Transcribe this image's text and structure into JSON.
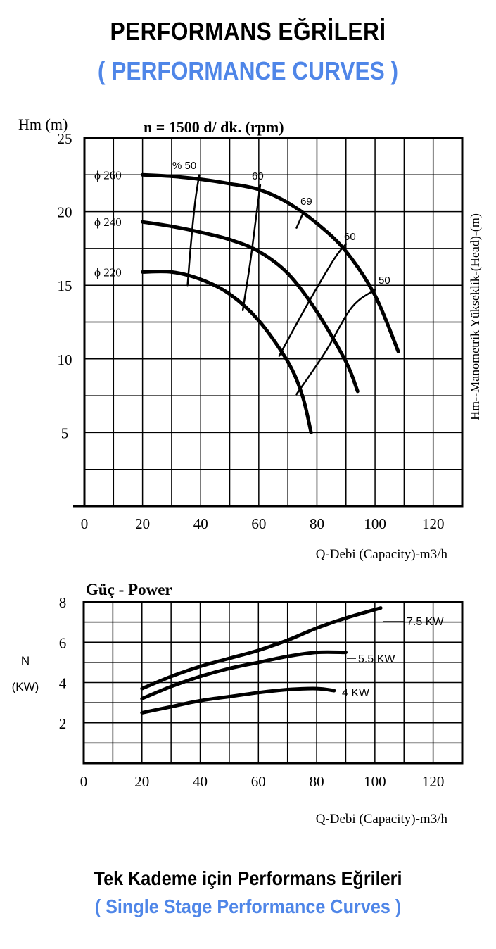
{
  "header": {
    "title_tr": "PERFORMANS EĞRİLERİ",
    "title_en": "( PERFORMANCE CURVES )"
  },
  "footer": {
    "caption_tr": "Tek Kademe için Performans Eğrileri",
    "caption_en": "( Single Stage Performance Curves )"
  },
  "colors": {
    "accent": "#4f86e8",
    "ink": "#000000"
  },
  "chart_data": [
    {
      "type": "line",
      "title": "n = 1500 d/ dk.  (rpm)",
      "ylabel": "Hm (m)",
      "ylabel_right": "Hm--Manometrik Yükseklik-(Head)-(m)",
      "xlabel": "Q-Debi (Capacity)-m3/h",
      "xlim": [
        0,
        130
      ],
      "ylim": [
        0,
        25
      ],
      "xticks": [
        "0",
        "20",
        "40",
        "60",
        "80",
        "100",
        "120"
      ],
      "yticks": [
        "5",
        "10",
        "15",
        "20",
        "25"
      ],
      "grid": true,
      "series": [
        {
          "name": "ϕ 260",
          "x": [
            20,
            30,
            40,
            50,
            60,
            70,
            80,
            90,
            100,
            108
          ],
          "y": [
            22.5,
            22.4,
            22.2,
            21.9,
            21.5,
            20.6,
            19.2,
            17.3,
            14.3,
            10.5
          ]
        },
        {
          "name": "ϕ 240",
          "x": [
            20,
            30,
            40,
            50,
            60,
            70,
            80,
            90,
            94
          ],
          "y": [
            19.3,
            19.0,
            18.6,
            18.1,
            17.3,
            15.8,
            13.2,
            9.8,
            7.8
          ]
        },
        {
          "name": "ϕ 220",
          "x": [
            20,
            30,
            40,
            50,
            60,
            70,
            75,
            78
          ],
          "y": [
            15.9,
            15.9,
            15.4,
            14.4,
            12.6,
            9.8,
            7.5,
            5.0
          ]
        }
      ],
      "efficiency_curves": [
        {
          "label": "% 50",
          "x": [
            39.5,
            38,
            36.5,
            35.5
          ],
          "y": [
            22.5,
            20.5,
            17.5,
            15.0
          ]
        },
        {
          "label": "60",
          "x": [
            60.5,
            59,
            57,
            54.5
          ],
          "y": [
            21.8,
            19.5,
            16.5,
            13.3
          ]
        },
        {
          "label": "69",
          "x": [
            73,
            75
          ],
          "y": [
            18.9,
            19.8
          ]
        },
        {
          "label": "60",
          "x": [
            67,
            77,
            86,
            90
          ],
          "y": [
            10.2,
            13.8,
            16.8,
            17.8
          ]
        },
        {
          "label": "50",
          "x": [
            73,
            83,
            92,
            100
          ],
          "y": [
            7.6,
            10.5,
            13.5,
            14.7
          ]
        }
      ],
      "annotations": [
        "% 50",
        "60",
        "69",
        "60",
        "50"
      ]
    },
    {
      "type": "line",
      "title": "Güç - Power",
      "ylabel": "N",
      "ylabel_unit": "(KW)",
      "xlabel": "Q-Debi (Capacity)-m3/h",
      "xlim": [
        0,
        130
      ],
      "ylim": [
        0,
        8
      ],
      "xticks": [
        "0",
        "20",
        "40",
        "60",
        "80",
        "100",
        "120"
      ],
      "yticks": [
        "2",
        "4",
        "6",
        "8"
      ],
      "grid": true,
      "series": [
        {
          "name": "7.5 KW",
          "x": [
            20,
            30,
            40,
            50,
            60,
            70,
            80,
            90,
            102
          ],
          "y": [
            3.7,
            4.3,
            4.8,
            5.2,
            5.6,
            6.1,
            6.7,
            7.2,
            7.7
          ]
        },
        {
          "name": "5.5 KW",
          "x": [
            20,
            30,
            40,
            50,
            60,
            70,
            80,
            90
          ],
          "y": [
            3.2,
            3.8,
            4.3,
            4.7,
            5.0,
            5.3,
            5.5,
            5.5
          ]
        },
        {
          "name": "4 KW",
          "x": [
            20,
            30,
            40,
            50,
            60,
            70,
            80,
            86
          ],
          "y": [
            2.5,
            2.8,
            3.1,
            3.3,
            3.5,
            3.65,
            3.7,
            3.6
          ]
        }
      ]
    }
  ]
}
